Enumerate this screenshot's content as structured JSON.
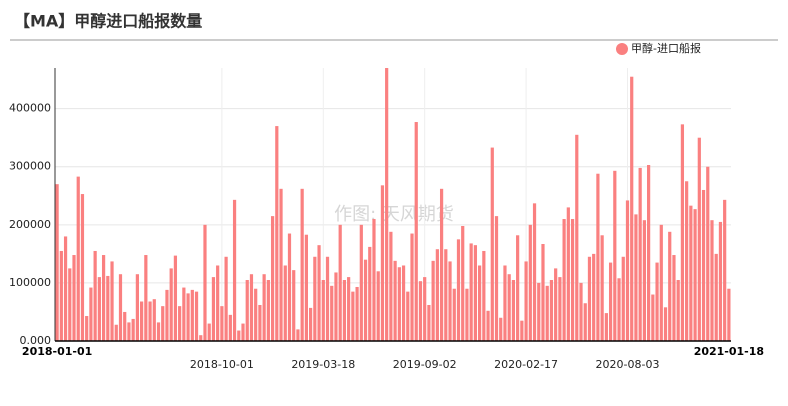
{
  "chart_data": {
    "type": "bar",
    "title": "【MA】甲醇进口船报数量",
    "watermark": "作图: 天风期货",
    "categories": [
      "2018-01-01",
      null,
      null,
      null,
      null,
      null,
      null,
      null,
      null,
      null,
      null,
      null,
      null,
      null,
      null,
      null,
      null,
      null,
      null,
      null,
      null,
      null,
      null,
      null,
      null,
      null,
      null,
      null,
      null,
      null,
      null,
      null,
      null,
      null,
      null,
      null,
      null,
      null,
      null,
      "2018-10-01",
      null,
      null,
      null,
      null,
      null,
      null,
      null,
      null,
      null,
      null,
      null,
      null,
      null,
      null,
      null,
      null,
      null,
      null,
      null,
      null,
      null,
      null,
      null,
      "2019-03-18",
      null,
      null,
      null,
      null,
      null,
      null,
      null,
      null,
      null,
      null,
      null,
      null,
      null,
      null,
      null,
      null,
      null,
      null,
      null,
      null,
      null,
      null,
      null,
      "2019-09-02",
      null,
      null,
      null,
      null,
      null,
      null,
      null,
      null,
      null,
      null,
      null,
      null,
      null,
      null,
      null,
      null,
      null,
      null,
      null,
      null,
      null,
      null,
      null,
      "2020-02-17",
      null,
      null,
      null,
      null,
      null,
      null,
      null,
      null,
      null,
      null,
      null,
      null,
      null,
      null,
      null,
      null,
      null,
      null,
      null,
      null,
      null,
      null,
      null,
      "2020-08-03",
      null,
      null,
      null,
      null,
      null,
      null,
      null,
      null,
      null,
      null,
      null,
      null,
      null,
      null,
      null,
      null,
      null,
      null,
      null,
      null,
      null,
      null,
      null,
      "2021-01-18"
    ],
    "series": [
      {
        "name": "甲醇-进口船报",
        "color": "#fa8080",
        "values": [
          270000,
          155000,
          180000,
          125000,
          148000,
          283000,
          253000,
          43000,
          92000,
          155000,
          110000,
          148000,
          112000,
          137000,
          28000,
          115000,
          50000,
          32000,
          38000,
          115000,
          68000,
          148000,
          68000,
          72000,
          32000,
          60000,
          88000,
          125000,
          147000,
          60000,
          92000,
          82000,
          88000,
          85000,
          10000,
          200000,
          30000,
          110000,
          130000,
          60000,
          145000,
          45000,
          243000,
          18000,
          30000,
          105000,
          115000,
          90000,
          62000,
          115000,
          105000,
          215000,
          370000,
          262000,
          130000,
          185000,
          122000,
          20000,
          262000,
          183000,
          57000,
          145000,
          165000,
          105000,
          145000,
          95000,
          118000,
          200000,
          105000,
          110000,
          85000,
          93000,
          200000,
          140000,
          162000,
          210000,
          120000,
          268000,
          470000,
          188000,
          138000,
          127000,
          130000,
          85000,
          185000,
          377000,
          103000,
          110000,
          62000,
          138000,
          158000,
          262000,
          158000,
          137000,
          90000,
          175000,
          198000,
          90000,
          168000,
          165000,
          130000,
          155000,
          52000,
          333000,
          215000,
          40000,
          130000,
          115000,
          105000,
          182000,
          35000,
          137000,
          200000,
          237000,
          100000,
          167000,
          95000,
          105000,
          125000,
          110000,
          210000,
          230000,
          210000,
          355000,
          100000,
          65000,
          145000,
          150000,
          288000,
          182000,
          48000,
          135000,
          293000,
          108000,
          145000,
          242000,
          455000,
          218000,
          298000,
          208000,
          303000,
          80000,
          135000,
          200000,
          58000,
          188000,
          148000,
          105000,
          373000,
          275000,
          233000,
          227000,
          350000,
          260000,
          300000,
          208000,
          150000,
          205000,
          243000,
          90000
        ]
      }
    ],
    "ylim": [
      0,
      470000
    ],
    "yticks": [
      {
        "value": 0,
        "label": "0.000"
      },
      100000,
      200000,
      300000,
      400000
    ],
    "grid": true,
    "legend": "top-right"
  }
}
